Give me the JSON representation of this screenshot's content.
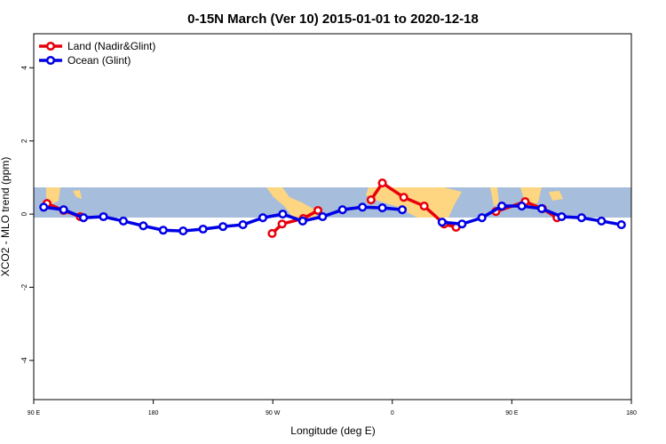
{
  "chart_data": {
    "type": "line",
    "title": "0-15N March (Ver 10)   2015-01-01 to 2020-12-18",
    "xlabel": "Longitude (deg E)",
    "ylabel": "XCO2 - MLO trend (ppm)",
    "xlim": [
      90,
      540
    ],
    "ylim": [
      -5.07,
      4.93
    ],
    "xticks": [
      {
        "value": 90,
        "label": "90 E"
      },
      180,
      {
        "value": 270,
        "label": "90 W"
      },
      {
        "value": 360,
        "label": "0"
      },
      {
        "value": 450,
        "label": "90 E"
      },
      {
        "value": 540,
        "label": "180"
      }
    ],
    "yticks": [
      4,
      2,
      0,
      -2,
      -4
    ],
    "legend": "top-left",
    "series": [
      {
        "name": "Land (Nadir&Glint)",
        "color": "#e8000b",
        "x": [
          100,
          112.5,
          125,
          null,
          269.5,
          277,
          293,
          304,
          null,
          344,
          352.5,
          368.6,
          384,
          399,
          408,
          null,
          438,
          460,
          473,
          484
        ],
        "values": [
          0.29,
          0.1,
          -0.07,
          null,
          -0.53,
          -0.27,
          -0.12,
          0.1,
          null,
          0.39,
          0.85,
          0.46,
          0.22,
          -0.27,
          -0.36,
          null,
          0.07,
          0.34,
          0.15,
          -0.1
        ]
      },
      {
        "name": "Ocean (Glint)",
        "color": "#0000e6",
        "x": [
          97.5,
          112.5,
          127.5,
          142.5,
          157.5,
          172.5,
          187.5,
          202.5,
          217.5,
          232.5,
          247.5,
          262.5,
          277.5,
          292.5,
          307.5,
          322.5,
          337.5,
          352.5,
          367.5,
          null,
          397.5,
          412.5,
          427.5,
          442.5,
          457.5,
          472.5,
          487.5,
          502.5,
          517.5,
          532.5
        ],
        "values": [
          0.19,
          0.12,
          -0.1,
          -0.07,
          -0.19,
          -0.32,
          -0.44,
          -0.46,
          -0.41,
          -0.34,
          -0.29,
          -0.1,
          0,
          -0.19,
          -0.07,
          0.12,
          0.19,
          0.17,
          0.12,
          null,
          -0.22,
          -0.27,
          -0.1,
          0.22,
          0.22,
          0.15,
          -0.07,
          -0.1,
          -0.19,
          -0.29
        ]
      }
    ]
  }
}
